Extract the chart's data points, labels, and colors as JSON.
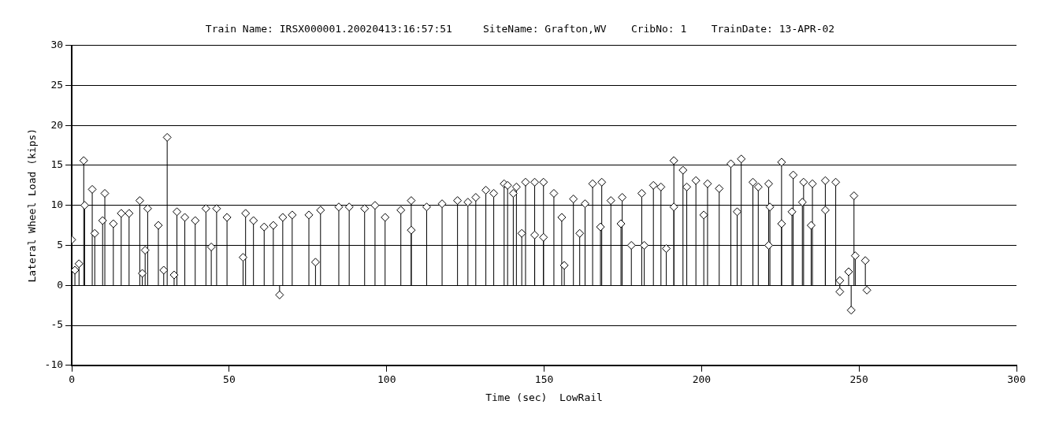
{
  "chart_data": {
    "type": "lollipop",
    "title": "Train Name: IRSX000001.20020413:16:57:51     SiteName: Grafton,WV    CribNo: 1    TrainDate: 13-APR-02",
    "xlabel": "Time (sec)  LowRail",
    "ylabel": "Lateral Wheel Load (kips)",
    "x": [
      0,
      1,
      2.3,
      3.8,
      4.1,
      6.5,
      7.3,
      9.8,
      10.5,
      13.2,
      15.7,
      18.2,
      21.6,
      22.4,
      23.3,
      24.1,
      27.5,
      29.2,
      30.3,
      32.5,
      33.4,
      35.9,
      39.2,
      42.6,
      44.3,
      46,
      49.3,
      54.4,
      55.2,
      57.7,
      61.1,
      64,
      66,
      67,
      70,
      75.3,
      77.4,
      79,
      84.8,
      88.1,
      93,
      96.3,
      99.5,
      104.5,
      107.8,
      107.8,
      112.7,
      117.6,
      122.5,
      125.8,
      128.3,
      131.5,
      134,
      137.3,
      138.4,
      140.2,
      141.2,
      142.9,
      144.1,
      147,
      147,
      149.8,
      149.8,
      153.1,
      155.6,
      156.4,
      159.3,
      161.3,
      163,
      165.4,
      167.9,
      168.3,
      171.2,
      174.4,
      174.8,
      177.7,
      181,
      181.8,
      184.7,
      187.1,
      188.8,
      191.2,
      191.2,
      194.1,
      195.3,
      198.2,
      200.7,
      201.9,
      205.6,
      209.3,
      211.3,
      212.6,
      216.3,
      218,
      221.3,
      221.3,
      221.7,
      225.4,
      225.4,
      228.7,
      229.1,
      232,
      232.4,
      234.8,
      235.2,
      239.3,
      239.3,
      242.6,
      243.9,
      243.9,
      246.7,
      247.5,
      248.4,
      248.8,
      252,
      252.5
    ],
    "values": [
      5.7,
      1.9,
      2.7,
      15.6,
      10,
      12,
      6.5,
      8.1,
      11.5,
      7.7,
      9,
      9,
      10.6,
      1.5,
      4.4,
      9.6,
      7.5,
      1.9,
      18.5,
      1.3,
      9.2,
      8.5,
      8.1,
      9.6,
      4.8,
      9.6,
      8.5,
      3.5,
      9,
      8.1,
      7.3,
      7.5,
      -1.2,
      8.5,
      8.8,
      8.8,
      2.9,
      9.4,
      9.8,
      9.8,
      9.6,
      10,
      8.5,
      9.4,
      10.6,
      6.9,
      9.8,
      10.2,
      10.6,
      10.4,
      11,
      11.9,
      11.5,
      12.7,
      12.5,
      11.5,
      12.3,
      6.5,
      12.9,
      12.9,
      6.3,
      12.9,
      6,
      11.5,
      8.5,
      2.5,
      10.8,
      6.5,
      10.2,
      12.7,
      7.3,
      12.9,
      10.6,
      7.7,
      11,
      5,
      11.5,
      5,
      12.5,
      12.3,
      4.6,
      15.6,
      9.8,
      14.4,
      12.3,
      13.1,
      8.8,
      12.7,
      12.1,
      15.2,
      9.2,
      15.8,
      12.9,
      12.3,
      12.7,
      5,
      9.8,
      15.4,
      7.7,
      9.2,
      13.8,
      10.4,
      12.9,
      7.5,
      12.7,
      13.1,
      9.4,
      12.9,
      0.6,
      -0.8,
      1.7,
      -3.1,
      11.2,
      3.7,
      3.1,
      -0.6
    ],
    "color": "#000000",
    "marker": "diamond",
    "grid": "y",
    "legend": false,
    "xlim": [
      0,
      300
    ],
    "xticks": [
      0,
      50,
      100,
      150,
      200,
      250,
      300
    ],
    "ylim": [
      -10,
      30
    ],
    "yticks": [
      -10,
      -5,
      0,
      5,
      10,
      15,
      20,
      25,
      30
    ]
  }
}
